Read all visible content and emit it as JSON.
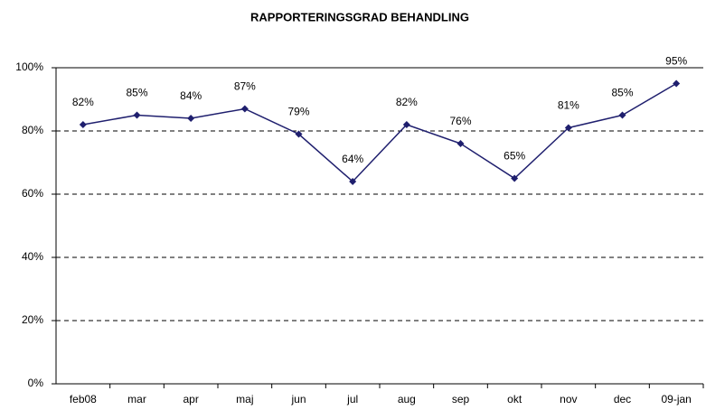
{
  "chart_data": {
    "type": "line",
    "title": "RAPPORTERINGSGRAD BEHANDLING",
    "categories": [
      "feb08",
      "mar",
      "apr",
      "maj",
      "jun",
      "jul",
      "aug",
      "sep",
      "okt",
      "nov",
      "dec",
      "09-jan"
    ],
    "series": [
      {
        "color": "#1f1f6e",
        "values": [
          82,
          85,
          84,
          87,
          79,
          64,
          82,
          76,
          65,
          81,
          85,
          95
        ],
        "value_labels": [
          "82%",
          "85%",
          "84%",
          "87%",
          "79%",
          "64%",
          "82%",
          "76%",
          "65%",
          "81%",
          "85%",
          "95%"
        ]
      }
    ],
    "ylim": [
      0,
      100
    ],
    "yticks": [
      {
        "value": 0,
        "label": "0%"
      },
      {
        "value": 20,
        "label": "20%"
      },
      {
        "value": 40,
        "label": "40%"
      },
      {
        "value": 60,
        "label": "60%"
      },
      {
        "value": 80,
        "label": "80%"
      },
      {
        "value": 100,
        "label": "100%"
      }
    ],
    "grid": true
  }
}
